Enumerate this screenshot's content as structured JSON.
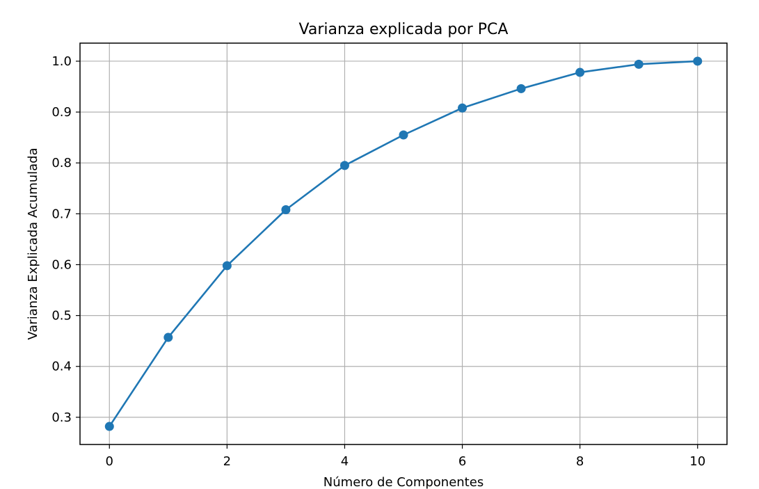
{
  "chart_data": {
    "type": "line",
    "title": "Varianza explicada por PCA",
    "xlabel": "Número de Componentes",
    "ylabel": "Varianza Explicada Acumulada",
    "x": [
      0,
      1,
      2,
      3,
      4,
      5,
      6,
      7,
      8,
      9,
      10
    ],
    "series": [
      {
        "values": [
          0.282,
          0.457,
          0.598,
          0.708,
          0.795,
          0.855,
          0.908,
          0.946,
          0.978,
          0.994,
          1.0
        ],
        "color": "#1f77b4",
        "marker": "circle"
      }
    ],
    "xlim": [
      -0.5,
      10.5
    ],
    "ylim": [
      0.2465,
      1.0355
    ],
    "x_ticks": [
      "0",
      "2",
      "4",
      "6",
      "8",
      "10"
    ],
    "y_ticks": [
      "0.3",
      "0.4",
      "0.5",
      "0.6",
      "0.7",
      "0.8",
      "0.9",
      "1.0"
    ],
    "grid": true,
    "grid_color": "#b0b0b0"
  }
}
